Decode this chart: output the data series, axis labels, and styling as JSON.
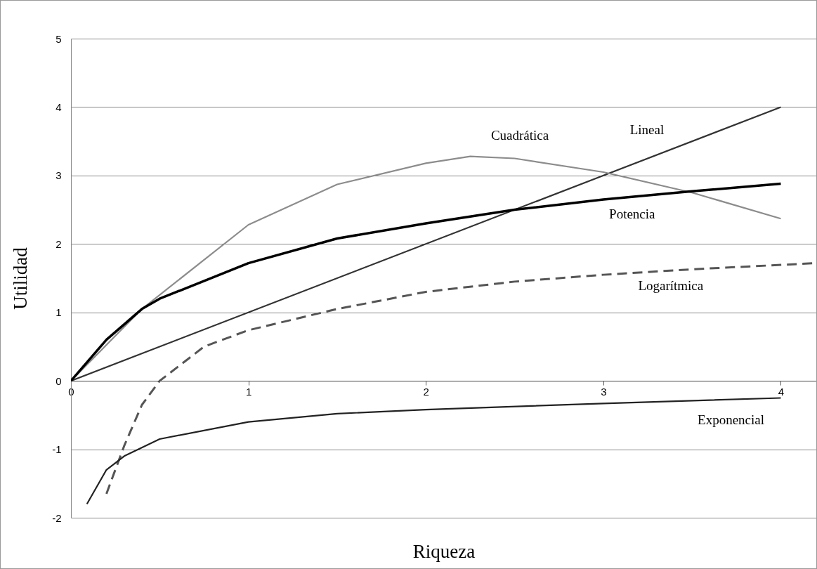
{
  "chart_data": {
    "type": "line",
    "xlabel": "Riqueza",
    "ylabel": "Utilidad",
    "xlim": [
      0,
      4.2
    ],
    "ylim": [
      -2,
      5
    ],
    "xticks": [
      0,
      1,
      2,
      3,
      4
    ],
    "yticks": [
      -2,
      -1,
      0,
      1,
      2,
      3,
      4,
      5
    ],
    "grid": "y",
    "series": [
      {
        "name": "Lineal",
        "color": "#333333",
        "line_style": "solid",
        "x": [
          0,
          4
        ],
        "values": [
          0,
          4
        ]
      },
      {
        "name": "Cuadrática",
        "color": "#8c8c8c",
        "line_style": "solid",
        "x": [
          0,
          0.4,
          1,
          1.5,
          2,
          2.25,
          2.5,
          3,
          3.5,
          4
        ],
        "values": [
          0,
          1.05,
          2.28,
          2.87,
          3.18,
          3.28,
          3.25,
          3.05,
          2.75,
          2.37
        ]
      },
      {
        "name": "Potencia",
        "color": "#000000",
        "line_style": "solid",
        "x": [
          0,
          0.2,
          0.4,
          0.5,
          1,
          1.5,
          2,
          2.5,
          3,
          3.5,
          4
        ],
        "values": [
          0,
          0.6,
          1.05,
          1.2,
          1.72,
          2.08,
          2.3,
          2.5,
          2.65,
          2.77,
          2.88
        ]
      },
      {
        "name": "Logarítmica",
        "color": "#555555",
        "line_style": "dashed",
        "x": [
          0.2,
          0.3,
          0.4,
          0.5,
          0.75,
          1,
          1.5,
          2,
          2.5,
          3,
          3.5,
          4.2
        ],
        "values": [
          -1.65,
          -0.95,
          -0.35,
          0,
          0.5,
          0.74,
          1.05,
          1.3,
          1.45,
          1.55,
          1.63,
          1.72
        ]
      },
      {
        "name": "Exponencial",
        "color": "#222222",
        "line_style": "solid",
        "x": [
          0.09,
          0.2,
          0.3,
          0.5,
          1,
          1.5,
          2,
          3,
          4
        ],
        "values": [
          -1.8,
          -1.3,
          -1.1,
          -0.85,
          -0.6,
          -0.48,
          -0.42,
          -0.33,
          -0.25
        ]
      }
    ]
  }
}
